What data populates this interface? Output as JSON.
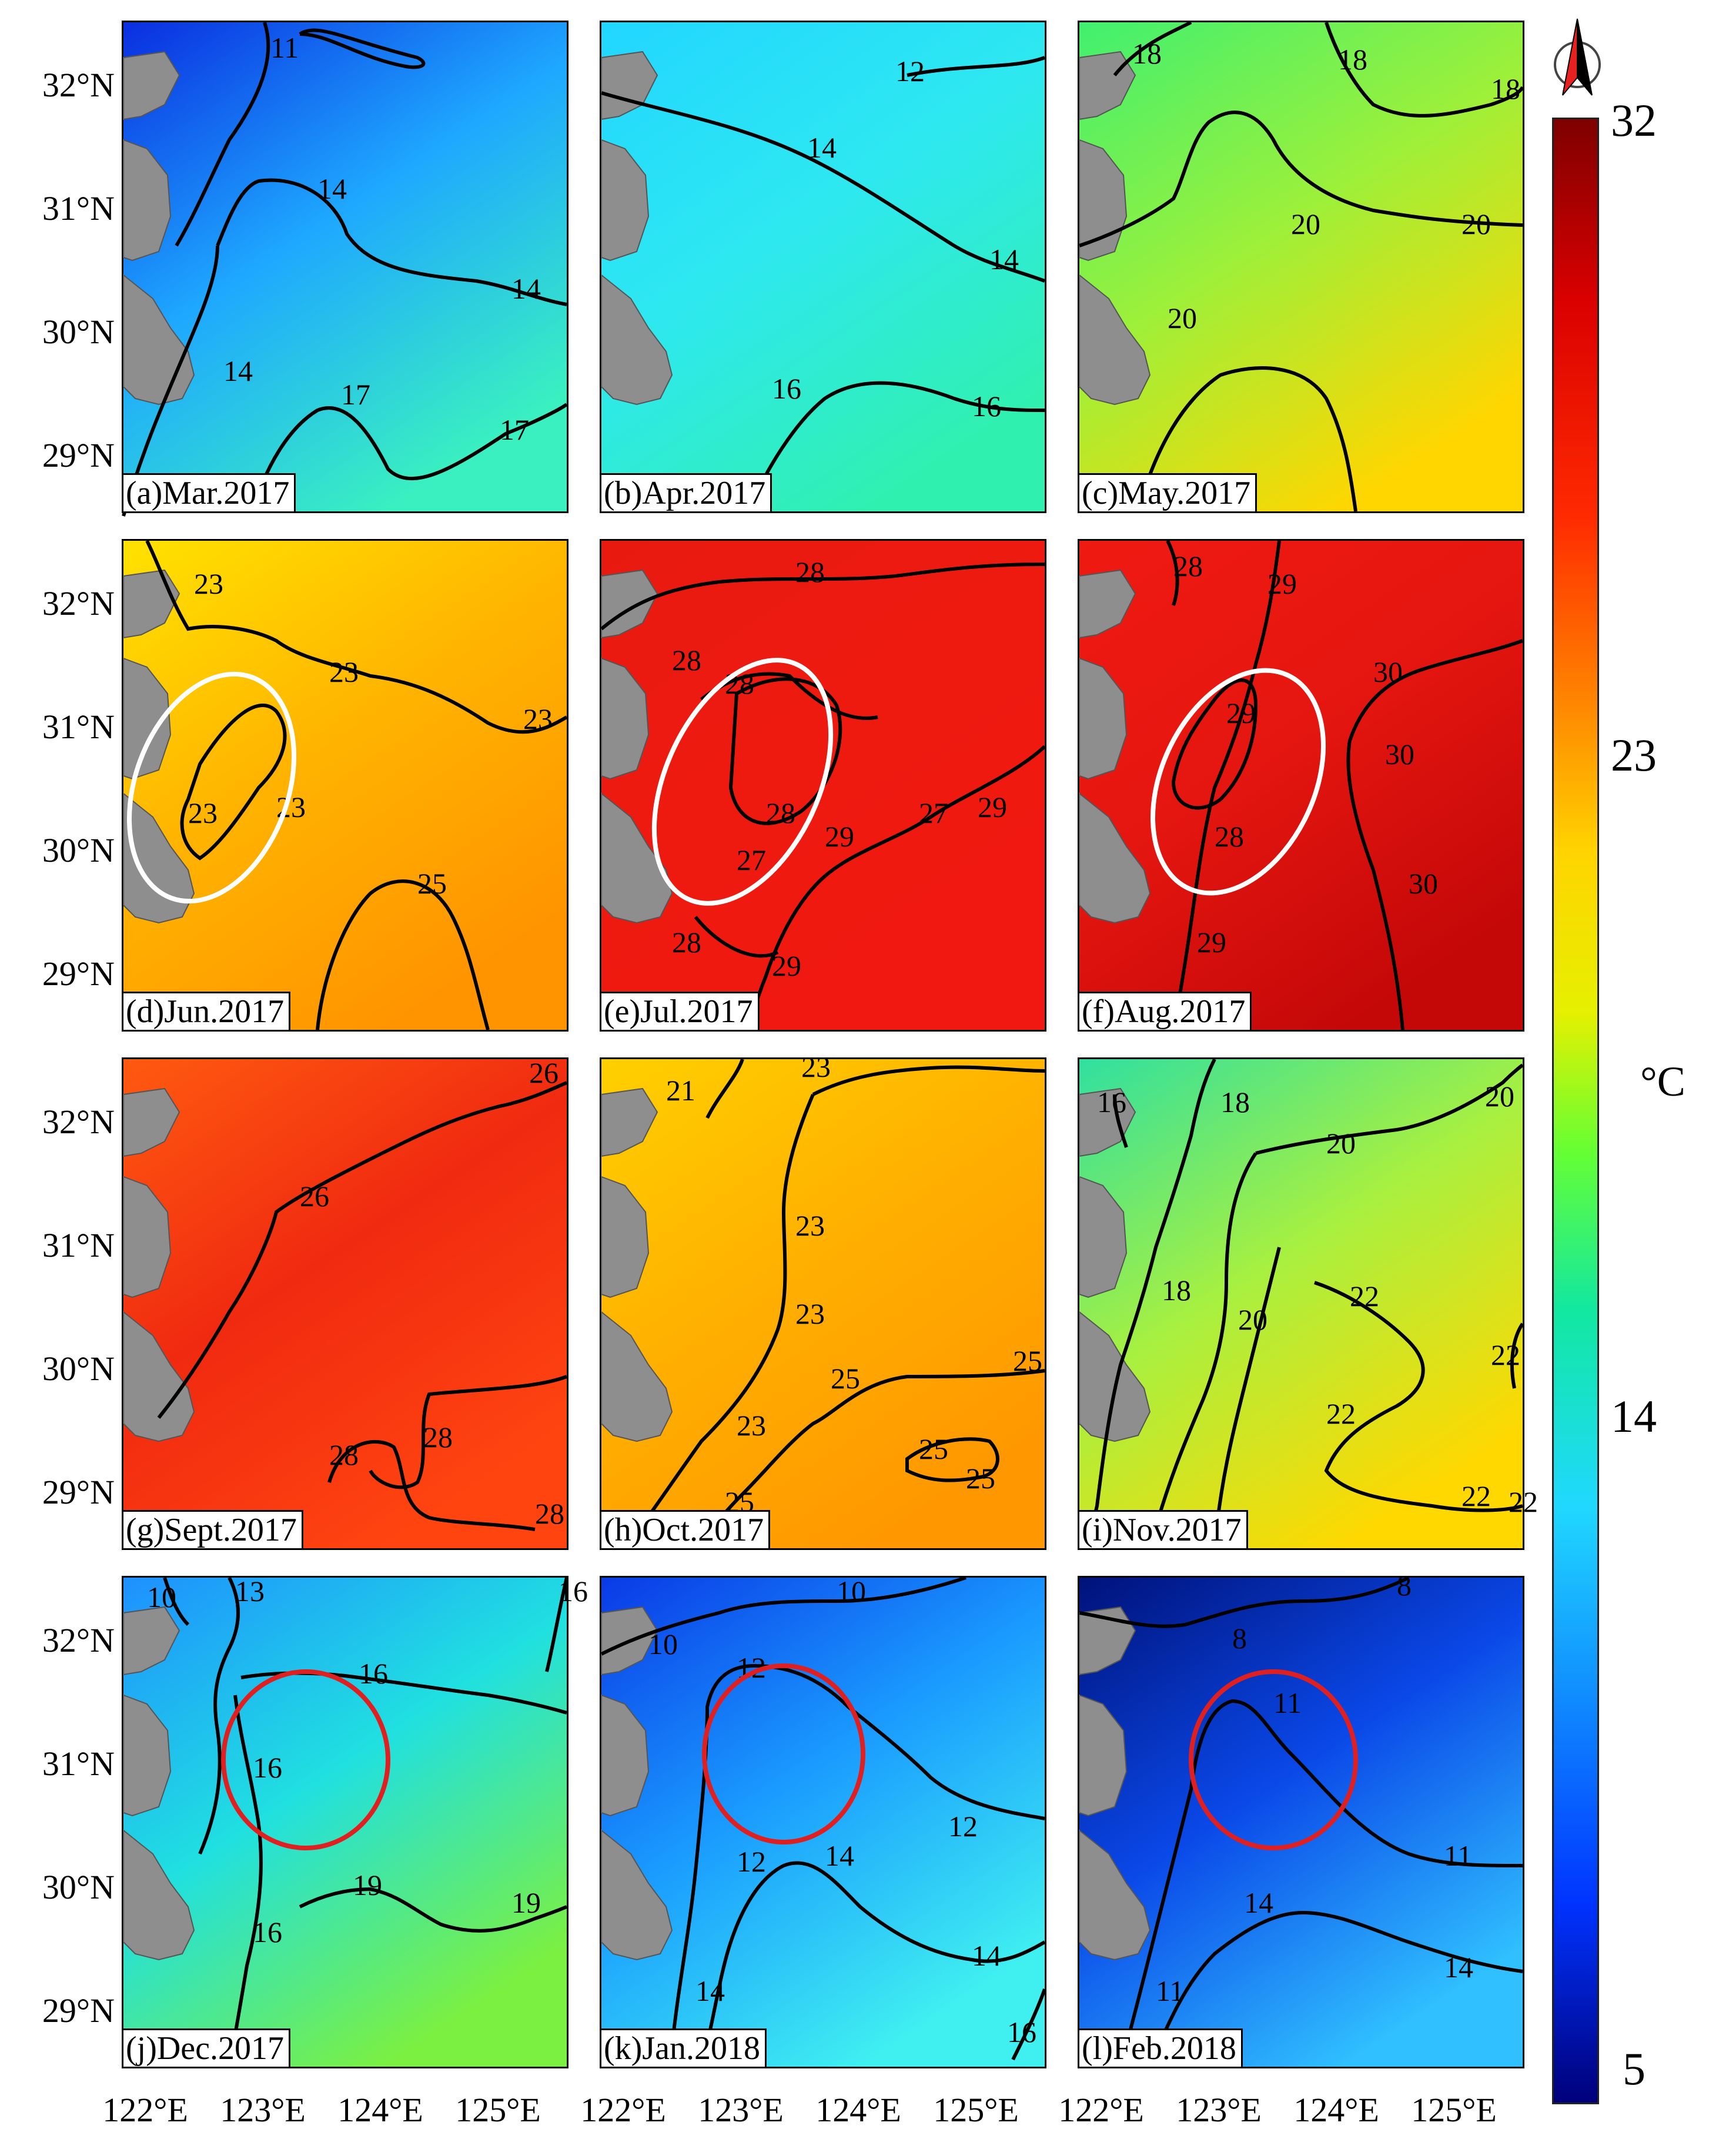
{
  "lat_labels": [
    "32°N",
    "31°N",
    "30°N",
    "29°N"
  ],
  "lon_labels": [
    "122°E",
    "123°E",
    "124°E",
    "125°E"
  ],
  "colorbar": {
    "ticks": [
      "32",
      "23",
      "14",
      "5"
    ],
    "unit": "°C",
    "colors": [
      "#7f0000",
      "#ff2a00",
      "#ffd400",
      "#66ff33",
      "#20d8ff",
      "#0033ff",
      "#00007a"
    ]
  },
  "compass": {
    "icon": "north-arrow-icon"
  },
  "panels": [
    {
      "label": "(a)Mar.2017",
      "bg": [
        "#0a2ee0",
        "#1ea8ff",
        "#3af0c0"
      ],
      "contours": [
        "11",
        "14",
        "14",
        "14",
        "17",
        "17"
      ]
    },
    {
      "label": "(b)Apr.2017",
      "bg": [
        "#22d6ff",
        "#2ee8f0",
        "#30f0b0"
      ],
      "contours": [
        "12",
        "14",
        "14",
        "16",
        "16"
      ]
    },
    {
      "label": "(c)May.2017",
      "bg": [
        "#40f070",
        "#9cf03a",
        "#ffd600"
      ],
      "contours": [
        "18",
        "18",
        "18",
        "20",
        "20",
        "20"
      ]
    },
    {
      "label": "(d)Jun.2017",
      "bg": [
        "#ffe200",
        "#ffb400",
        "#ff9400"
      ],
      "contours": [
        "23",
        "23",
        "23",
        "23",
        "23",
        "25"
      ]
    },
    {
      "label": "(e)Jul.2017",
      "bg": [
        "#e81a10",
        "#ee1a10",
        "#f01810"
      ],
      "contours": [
        "28",
        "28",
        "28",
        "28",
        "29",
        "29",
        "27",
        "27",
        "28",
        "29"
      ]
    },
    {
      "label": "(f)Aug.2017",
      "bg": [
        "#ef1a12",
        "#e51610",
        "#c40808"
      ],
      "contours": [
        "28",
        "29",
        "29",
        "30",
        "30",
        "30",
        "28",
        "29"
      ]
    },
    {
      "label": "(g)Sept.2017",
      "bg": [
        "#ff5a10",
        "#f02a10",
        "#ff4410"
      ],
      "contours": [
        "26",
        "26",
        "28",
        "28",
        "28"
      ]
    },
    {
      "label": "(h)Oct.2017",
      "bg": [
        "#ffd000",
        "#ffb000",
        "#ff9800"
      ],
      "contours": [
        "21",
        "23",
        "23",
        "23",
        "25",
        "25",
        "25",
        "25",
        "23",
        "25"
      ]
    },
    {
      "label": "(i)Nov.2017",
      "bg": [
        "#30e0a0",
        "#a8f040",
        "#ffd800"
      ],
      "contours": [
        "16",
        "18",
        "20",
        "20",
        "18",
        "20",
        "22",
        "22",
        "22",
        "22",
        "22"
      ]
    },
    {
      "label": "(j)Dec.2017",
      "bg": [
        "#1e90ff",
        "#20e0e0",
        "#7cf040"
      ],
      "contours": [
        "10",
        "13",
        "16",
        "16",
        "16",
        "19",
        "19",
        "16"
      ]
    },
    {
      "label": "(k)Jan.2018",
      "bg": [
        "#0a3ae6",
        "#1a9cff",
        "#40f0f0"
      ],
      "contours": [
        "10",
        "10",
        "12",
        "12",
        "12",
        "14",
        "14",
        "14",
        "16"
      ]
    },
    {
      "label": "(l)Feb.2018",
      "bg": [
        "#00127a",
        "#0a48e8",
        "#30c0ff"
      ],
      "contours": [
        "8",
        "8",
        "11",
        "11",
        "11",
        "14",
        "14"
      ]
    }
  ]
}
